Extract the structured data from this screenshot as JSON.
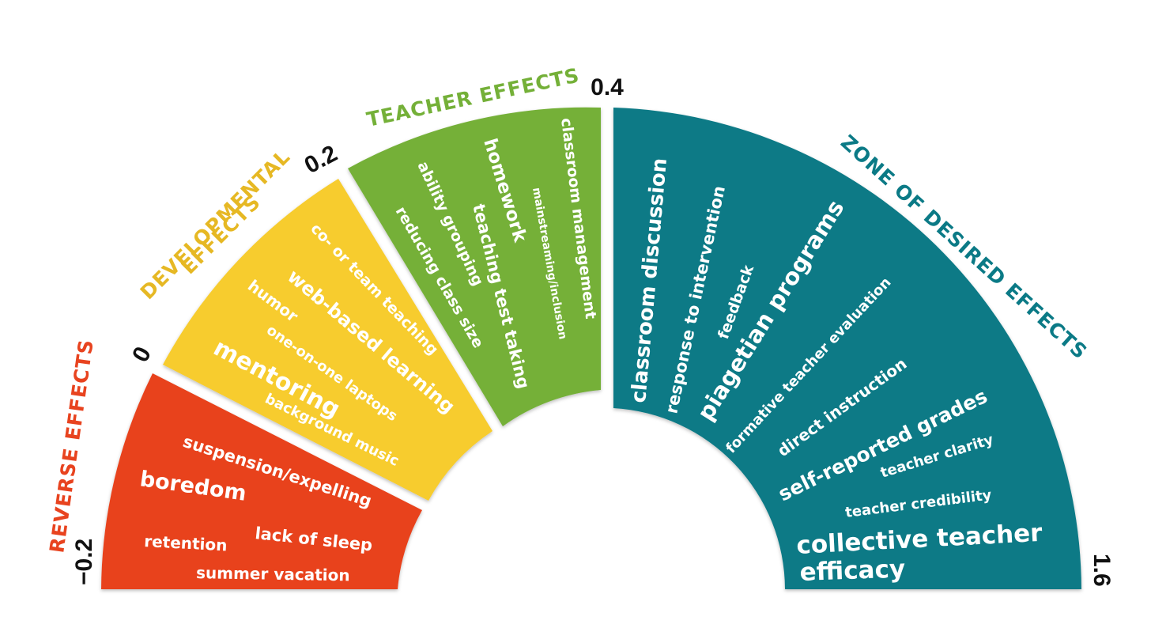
{
  "zones": [
    {
      "id": "reverse",
      "label": "REVERSE EFFECTS",
      "color": "#e8431f",
      "from": -0.2,
      "to": 0
    },
    {
      "id": "developmental",
      "label_lines": [
        "DEVELOPMENTAL",
        "EFFECTS"
      ],
      "color": "#f7cc2f",
      "from": 0,
      "to": 0.2
    },
    {
      "id": "teacher",
      "label": "TEACHER EFFECTS",
      "color": "#74b038",
      "from": 0.2,
      "to": 0.4
    },
    {
      "id": "desired",
      "label": "ZONE OF DESIRED EFFECTS",
      "color": "#0b7a86",
      "from": 0.4,
      "to": 1.6
    }
  ],
  "label_colors": {
    "reverse": "#e8431f",
    "developmental": "#e6b824",
    "teacher": "#74b038",
    "desired": "#0b7a86"
  },
  "ticks": [
    "−0.2",
    "0",
    "0.2",
    "0.4",
    "1.6"
  ],
  "items": {
    "reverse": [
      "suspension/expelling",
      "boredom",
      "retention",
      "lack of sleep",
      "summer vacation"
    ],
    "developmental": [
      "co- or team teaching",
      "web-based learning",
      "humor",
      "one-on-one laptops",
      "mentoring",
      "background music"
    ],
    "teacher": [
      "classroom management",
      "mainstreaming/inclusion",
      "homework",
      "teaching test taking",
      "ability grouping",
      "reducing class size"
    ],
    "desired": [
      "classroom discussion",
      "response to intervention",
      "feedback",
      "piagetian programs",
      "formative teacher evaluation",
      "direct instruction",
      "self-reported grades",
      "teacher clarity",
      "teacher credibility",
      "collective teacher",
      "efficacy"
    ]
  }
}
